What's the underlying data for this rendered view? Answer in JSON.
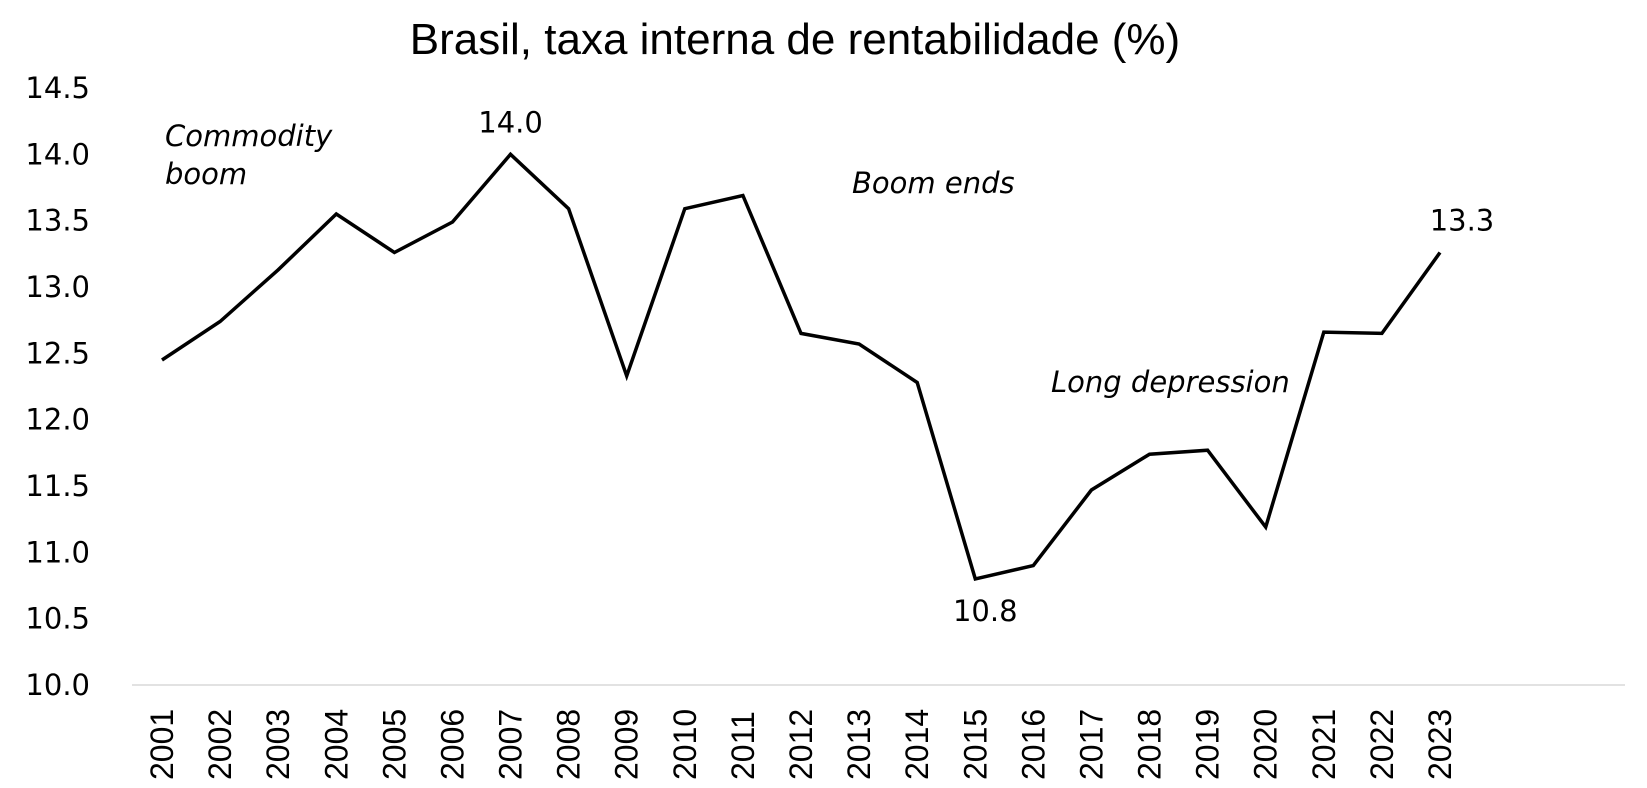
{
  "chart_data": {
    "type": "line",
    "title": "Brasil, taxa interna de rentabilidade (%)",
    "xlabel": "",
    "ylabel": "",
    "ylim": [
      10.0,
      14.5
    ],
    "yticks": [
      "10.0",
      "10.5",
      "11.0",
      "11.5",
      "12.0",
      "12.5",
      "13.0",
      "13.5",
      "14.0",
      "14.5"
    ],
    "categories": [
      "2001",
      "2002",
      "2003",
      "2004",
      "2005",
      "2006",
      "2007",
      "2008",
      "2009",
      "2010",
      "2011",
      "2012",
      "2013",
      "2014",
      "2015",
      "2016",
      "2017",
      "2018",
      "2019",
      "2020",
      "2021",
      "2022",
      "2023"
    ],
    "series": [
      {
        "values": [
          12.45,
          12.74,
          13.13,
          13.55,
          13.26,
          13.49,
          14.0,
          13.59,
          12.33,
          13.59,
          13.69,
          12.65,
          12.57,
          12.28,
          10.8,
          10.9,
          11.47,
          11.74,
          11.77,
          11.19,
          12.66,
          12.65,
          13.26
        ],
        "color": "#000000"
      }
    ],
    "data_labels": [
      {
        "category": "2007",
        "text": "14.0"
      },
      {
        "category": "2015",
        "text": "10.8"
      },
      {
        "category": "2023",
        "text": "13.3"
      }
    ],
    "annotations": [
      {
        "lines": [
          "Commodity",
          "boom"
        ]
      },
      {
        "lines": [
          "Boom ends"
        ]
      },
      {
        "lines": [
          "Long depression"
        ]
      }
    ],
    "grid": false,
    "legend": "none",
    "axis_color": "#d9d9d9"
  }
}
